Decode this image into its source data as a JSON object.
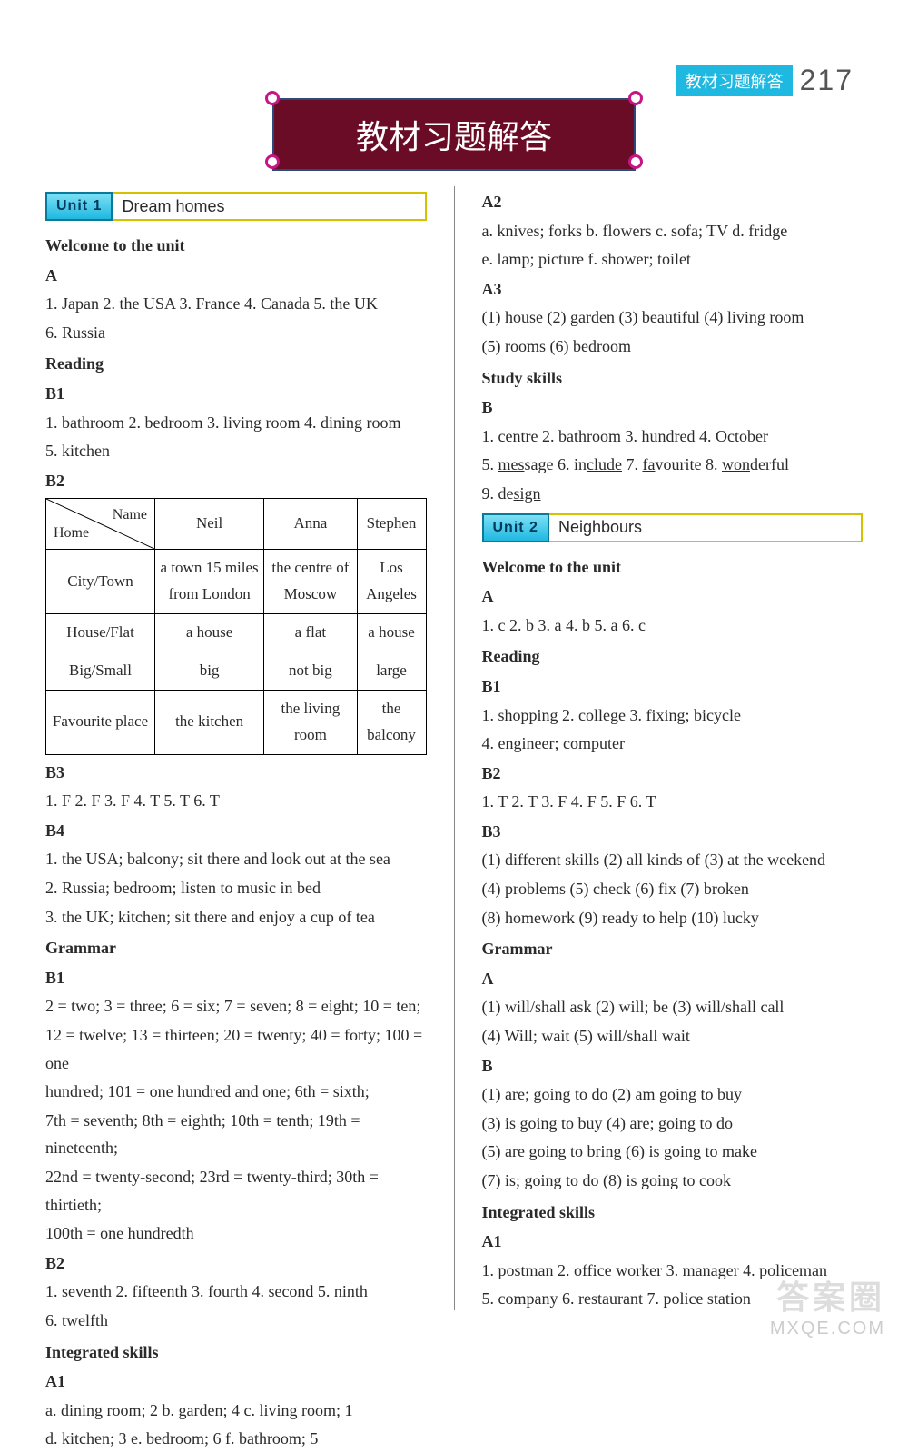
{
  "header": {
    "badge": "教材习题解答",
    "page": "217"
  },
  "mainTitle": "教材习题解答",
  "unit1": {
    "badge": "Unit 1",
    "title": "Dream homes",
    "welcome": {
      "head": "Welcome to the unit",
      "A": "A",
      "aText": "1. Japan   2. the USA   3. France   4. Canada   5. the UK",
      "aText2": "6. Russia"
    },
    "reading": {
      "head": "Reading",
      "B1": "B1",
      "b1Text": "1. bathroom   2. bedroom   3. living room   4. dining room",
      "b1Text2": "5. kitchen",
      "B2": "B2"
    },
    "table": {
      "diagName": "Name",
      "diagHome": "Home",
      "cols": [
        "Neil",
        "Anna",
        "Stephen"
      ],
      "rows": [
        {
          "label": "City/Town",
          "cells": [
            "a town 15 miles from London",
            "the centre of Moscow",
            "Los Angeles"
          ]
        },
        {
          "label": "House/Flat",
          "cells": [
            "a house",
            "a flat",
            "a house"
          ]
        },
        {
          "label": "Big/Small",
          "cells": [
            "big",
            "not big",
            "large"
          ]
        },
        {
          "label": "Favourite place",
          "cells": [
            "the kitchen",
            "the living room",
            "the balcony"
          ]
        }
      ]
    },
    "B3": "B3",
    "b3Text": "1. F   2. F   3. F   4. T   5. T   6. T",
    "B4": "B4",
    "b4_1": "1. the USA; balcony; sit there and look out at the sea",
    "b4_2": "2. Russia; bedroom; listen to music in bed",
    "b4_3": "3. the UK; kitchen; sit there and enjoy a cup of tea",
    "grammar": {
      "head": "Grammar",
      "B1": "B1",
      "b1_1": "2 = two; 3 = three; 6 = six; 7 = seven; 8 = eight; 10 = ten;",
      "b1_2": "12 = twelve; 13 = thirteen; 20 = twenty; 40 = forty; 100 = one",
      "b1_3": "hundred;  101  =  one  hundred  and  one;  6th  =  sixth;",
      "b1_4": "7th = seventh; 8th = eighth; 10th = tenth; 19th = nineteenth;",
      "b1_5": "22nd = twenty-second; 23rd = twenty-third; 30th = thirtieth;",
      "b1_6": "100th = one hundredth",
      "B2": "B2",
      "b2_1": "1. seventh   2. fifteenth   3. fourth   4. second   5. ninth",
      "b2_2": "6. twelfth"
    },
    "integrated": {
      "head": "Integrated skills",
      "A1": "A1",
      "a1_1": "a. dining room; 2    b. garden; 4    c. living room; 1",
      "a1_2": "d. kitchen; 3    e. bedroom; 6    f. bathroom; 5"
    }
  },
  "unit1_right": {
    "A2": "A2",
    "a2_1": "a. knives; forks    b. flowers    c. sofa; TV    d. fridge",
    "a2_2": "e. lamp; picture    f. shower; toilet",
    "A3": "A3",
    "a3_1": "(1) house    (2) garden    (3) beautiful    (4) living room",
    "a3_2": "(5) rooms    (6) bedroom",
    "study": {
      "head": "Study skills",
      "B": "B",
      "words": [
        {
          "pre": "1. ",
          "u": "cen",
          "post": "tre"
        },
        {
          "pre": "   2. ",
          "u": "bath",
          "post": "room"
        },
        {
          "pre": "   3. ",
          "u": "hun",
          "post": "dred"
        },
        {
          "pre": "   4. Oc",
          "u": "to",
          "post": "ber"
        }
      ],
      "words2": [
        {
          "pre": "5. ",
          "u": "mes",
          "post": "sage"
        },
        {
          "pre": "   6. in",
          "u": "clude",
          "post": ""
        },
        {
          "pre": "   7. ",
          "u": "fa",
          "post": "vourite"
        },
        {
          "pre": "   8. ",
          "u": "won",
          "post": "derful"
        }
      ],
      "words3": [
        {
          "pre": "9. de",
          "u": "sign",
          "post": ""
        }
      ]
    }
  },
  "unit2": {
    "badge": "Unit 2",
    "title": "Neighbours",
    "welcome": {
      "head": "Welcome to the unit",
      "A": "A",
      "aText": "1. c   2. b   3. a   4. b   5. a   6. c"
    },
    "reading": {
      "head": "Reading",
      "B1": "B1",
      "b1_1": "1. shopping   2. college   3. fixing; bicycle",
      "b1_2": "4. engineer; computer",
      "B2": "B2",
      "b2": "1. T   2. T   3. F   4. F   5. F   6. T",
      "B3": "B3",
      "b3_1": "(1) different skills    (2) all kinds of    (3) at the weekend",
      "b3_2": "(4) problems    (5) check    (6) fix    (7) broken",
      "b3_3": "(8) homework    (9) ready to help    (10) lucky"
    },
    "grammar": {
      "head": "Grammar",
      "A": "A",
      "a_1": "(1) will/shall ask    (2) will; be    (3) will/shall call",
      "a_2": "(4) Will; wait    (5) will/shall wait",
      "B": "B",
      "b_1": "(1) are; going to do    (2) am going to buy",
      "b_2": "(3) is going to buy    (4) are; going to do",
      "b_3": "(5) are going to bring    (6) is going to make",
      "b_4": "(7) is; going to do    (8) is going to cook"
    },
    "integrated": {
      "head": "Integrated skills",
      "A1": "A1",
      "a1_1": "1. postman   2. office worker   3. manager   4. policeman",
      "a1_2": "5. company   6. restaurant   7. police station"
    }
  },
  "watermark": {
    "top": "答案圈",
    "bot": "MXQE.COM"
  }
}
